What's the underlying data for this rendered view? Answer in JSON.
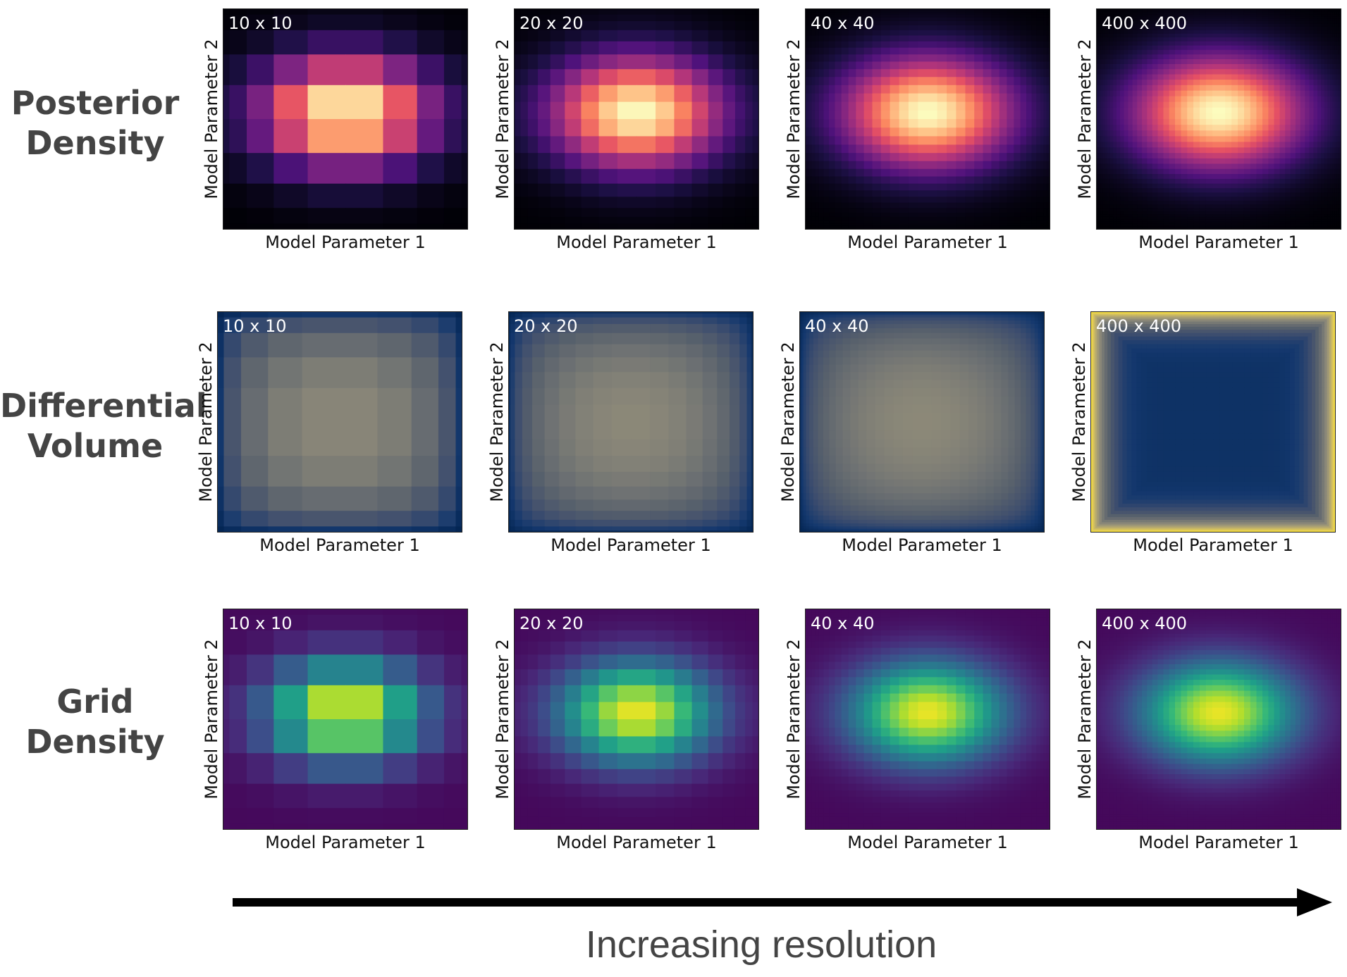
{
  "rows": [
    {
      "key": "posterior",
      "label_lines": [
        "Posterior",
        "Density"
      ],
      "colormap": "magma"
    },
    {
      "key": "volume",
      "label_lines": [
        "Differential",
        "Volume"
      ],
      "colormap": "cividis"
    },
    {
      "key": "density",
      "label_lines": [
        "Grid",
        "Density"
      ],
      "colormap": "viridis"
    }
  ],
  "columns": [
    {
      "resolution_label": "10 x 10",
      "n": 10
    },
    {
      "resolution_label": "20 x 20",
      "n": 20
    },
    {
      "resolution_label": "40 x 40",
      "n": 40
    },
    {
      "resolution_label": "400 x 400",
      "n": 400
    }
  ],
  "axes": {
    "xlabel": "Model Parameter 1",
    "ylabel": "Model Parameter 2"
  },
  "caption": "Increasing resolution",
  "colors": {
    "row_label": "#444444",
    "arrow": "#000000",
    "panel_text": "#ffffff"
  }
}
